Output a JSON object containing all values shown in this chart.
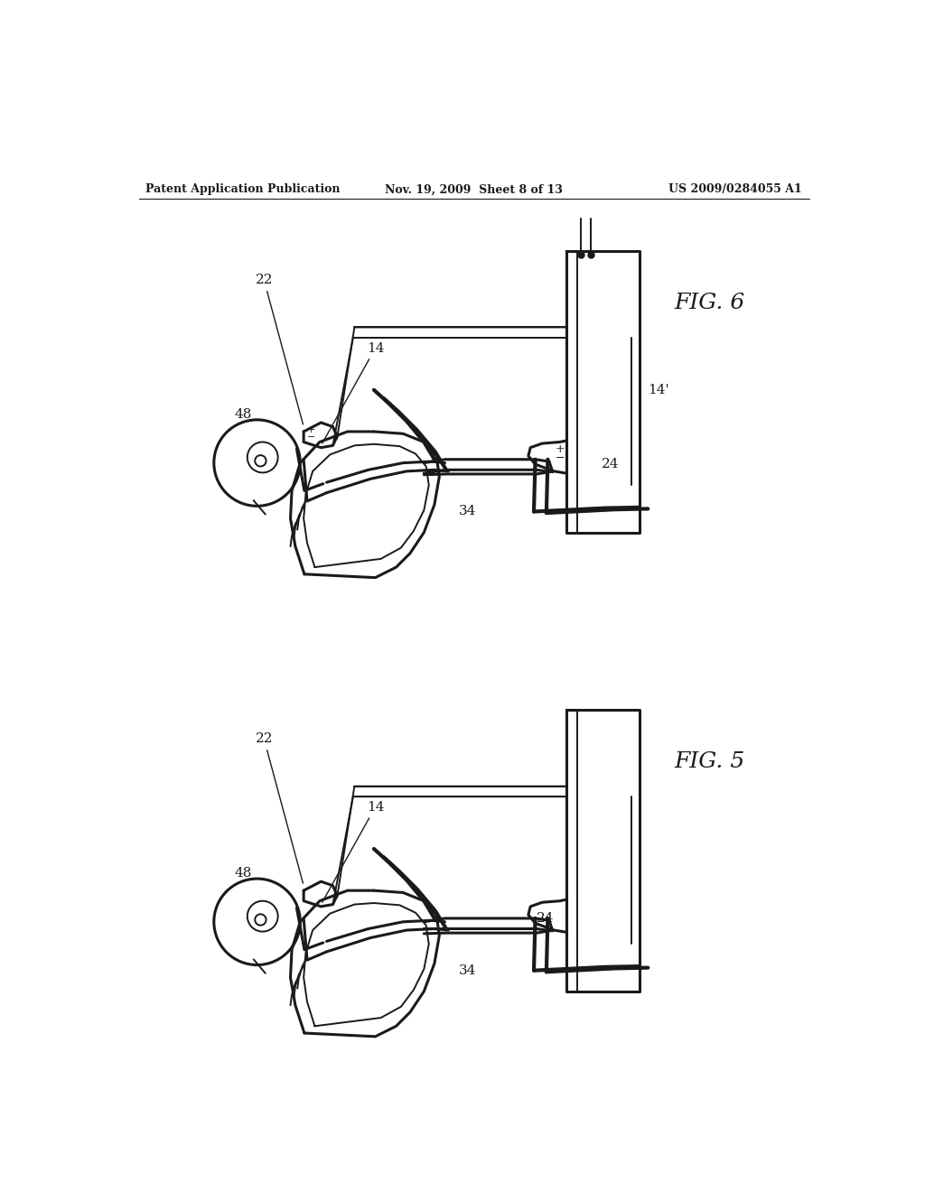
{
  "bg_color": "#ffffff",
  "line_color": "#1a1a1a",
  "header_left": "Patent Application Publication",
  "header_center": "Nov. 19, 2009  Sheet 8 of 13",
  "header_right": "US 2009/0284055 A1",
  "fig5_label": "FIG. 5",
  "fig6_label": "FIG. 6",
  "lw": 2.2,
  "lw_thin": 1.4,
  "lw_thick": 3.0
}
